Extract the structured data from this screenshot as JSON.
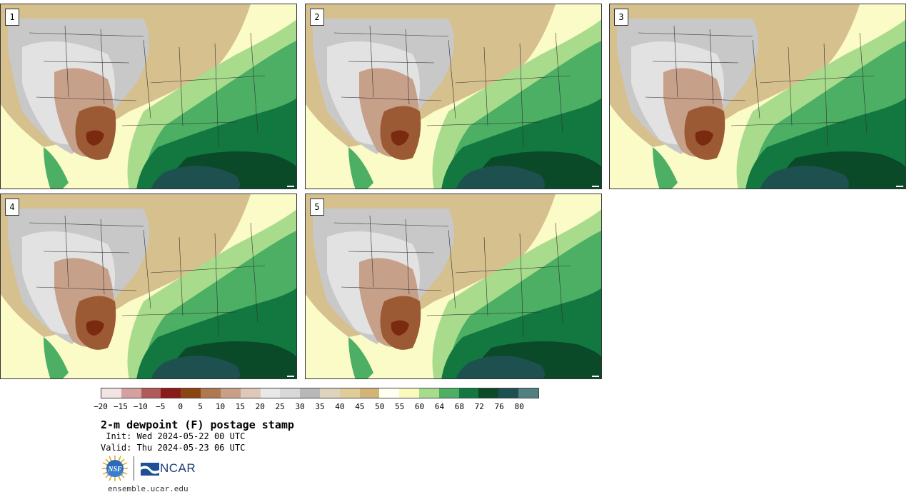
{
  "members": [
    {
      "label": "1"
    },
    {
      "label": "2"
    },
    {
      "label": "3"
    },
    {
      "label": "4"
    },
    {
      "label": "5"
    }
  ],
  "colorbar": {
    "colors": [
      "#f3e4e4",
      "#d4a0a0",
      "#b05a5a",
      "#8b1a1a",
      "#8b4513",
      "#b07850",
      "#c8a088",
      "#e0c8b8",
      "#e8e8e8",
      "#d8d8d8",
      "#b8b8b8",
      "#dcd4bc",
      "#e0cc98",
      "#d2b478",
      "#fffff0",
      "#fafabe",
      "#a8dc8c",
      "#4caf64",
      "#127840",
      "#0a4a28",
      "#1e5050",
      "#508080"
    ],
    "ticks": [
      "−20",
      "−15",
      "−10",
      "−5",
      "0",
      "5",
      "10",
      "15",
      "20",
      "25",
      "30",
      "35",
      "40",
      "45",
      "50",
      "55",
      "60",
      "64",
      "68",
      "72",
      "76",
      "80"
    ]
  },
  "title": "2-m dewpoint (F) postage stamp",
  "init": " Init: Wed 2024-05-22 00 UTC",
  "valid": "Valid: Thu 2024-05-23 06 UTC",
  "logos": {
    "nsf": "NSF",
    "ncar": "NCAR"
  },
  "site": "ensemble.ucar.edu",
  "icons": {
    "nsf_logo": "nsf-globe-logo",
    "ncar_logo": "ncar-wave-logo"
  }
}
